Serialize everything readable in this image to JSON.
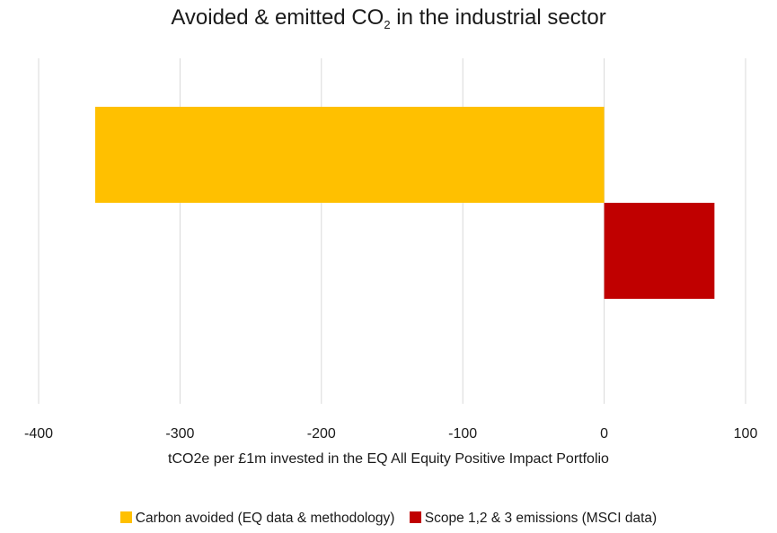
{
  "chart_data": {
    "type": "bar",
    "orientation": "horizontal",
    "title": {
      "main": "Avoided & emitted CO",
      "subscript": "2",
      "suffix": " in the industrial sector"
    },
    "xlabel": "tCO2e per £1m invested in the EQ All Equity Positive Impact Portfolio",
    "ylabel": "",
    "xlim": [
      -400,
      100
    ],
    "xticks": [
      -400,
      -300,
      -200,
      -100,
      0,
      100
    ],
    "xtick_labels": [
      "-400",
      "-300",
      "-200",
      "-100",
      "0",
      "100"
    ],
    "grid": "vertical",
    "legend_position": "bottom",
    "series": [
      {
        "name": "Carbon avoided (EQ data & methodology)",
        "values": [
          -360
        ],
        "color": "#FFC000"
      },
      {
        "name": "Scope 1,2 & 3 emissions (MSCI data)",
        "values": [
          78
        ],
        "color": "#C00000"
      }
    ]
  }
}
